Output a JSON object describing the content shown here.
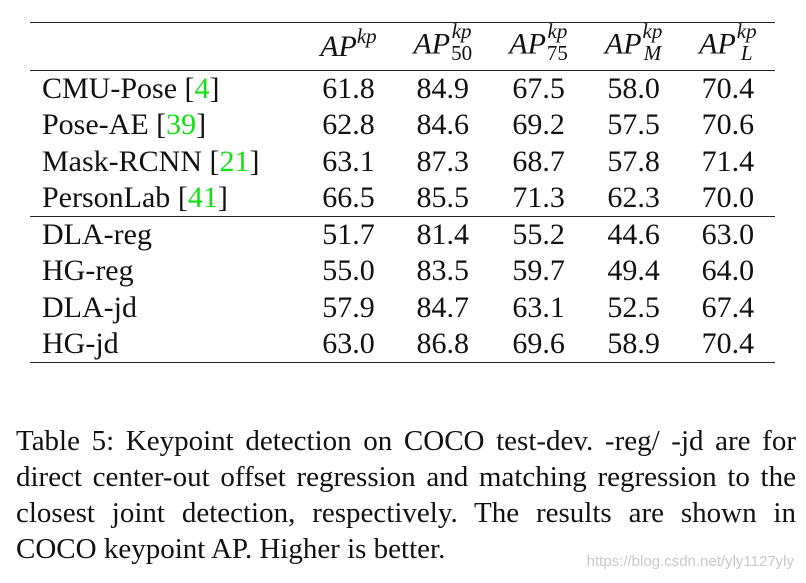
{
  "table": {
    "columns": [
      {
        "base": "AP",
        "sup": "kp",
        "sub": ""
      },
      {
        "base": "AP",
        "sup": "kp",
        "sub": "50"
      },
      {
        "base": "AP",
        "sup": "kp",
        "sub": "75"
      },
      {
        "base": "AP",
        "sup": "kp",
        "sub": "M"
      },
      {
        "base": "AP",
        "sup": "kp",
        "sub": "L"
      }
    ],
    "rows": [
      {
        "name": "CMU-Pose",
        "cite": "4",
        "values": [
          "61.8",
          "84.9",
          "67.5",
          "58.0",
          "70.4"
        ]
      },
      {
        "name": "Pose-AE",
        "cite": "39",
        "values": [
          "62.8",
          "84.6",
          "69.2",
          "57.5",
          "70.6"
        ]
      },
      {
        "name": "Mask-RCNN",
        "cite": "21",
        "values": [
          "63.1",
          "87.3",
          "68.7",
          "57.8",
          "71.4"
        ]
      },
      {
        "name": "PersonLab",
        "cite": "41",
        "values": [
          "66.5",
          "85.5",
          "71.3",
          "62.3",
          "70.0"
        ]
      },
      {
        "name": "DLA-reg",
        "cite": "",
        "values": [
          "51.7",
          "81.4",
          "55.2",
          "44.6",
          "63.0"
        ]
      },
      {
        "name": "HG-reg",
        "cite": "",
        "values": [
          "55.0",
          "83.5",
          "59.7",
          "49.4",
          "64.0"
        ]
      },
      {
        "name": "DLA-jd",
        "cite": "",
        "values": [
          "57.9",
          "84.7",
          "63.1",
          "52.5",
          "67.4"
        ]
      },
      {
        "name": "HG-jd",
        "cite": "",
        "values": [
          "63.0",
          "86.8",
          "69.6",
          "58.9",
          "70.4"
        ]
      }
    ]
  },
  "caption": "Table 5: Keypoint detection on COCO test-dev. -reg/ -jd are for direct center-out offset regression and matching regression to the closest joint detection, respectively. The results are shown in COCO keypoint AP. Higher is better.",
  "watermark": "https://blog.csdn.net/yly1127yly",
  "colors": {
    "citation": "#12e012",
    "text": "#111111",
    "rule": "#222222"
  }
}
